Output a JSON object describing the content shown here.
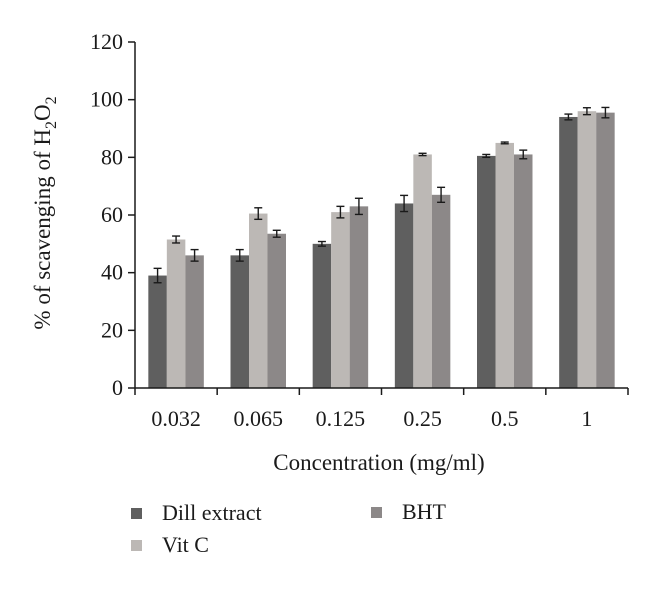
{
  "chart_data": {
    "type": "bar",
    "title": "",
    "xlabel": "Concentration (mg/ml)",
    "ylabel": {
      "main": "% of scavenging of H",
      "sub1": "2",
      "mid": "O",
      "sub2": "2"
    },
    "ylim": [
      0,
      120
    ],
    "yticks": [
      "0",
      "20",
      "40",
      "60",
      "80",
      "100",
      "120"
    ],
    "categories": [
      "0.032",
      "0.065",
      "0.125",
      "0.25",
      "0.5",
      "1"
    ],
    "grid": false,
    "legend_position": "bottom",
    "series": [
      {
        "name": "Dill extract",
        "color": "#5f5f5f",
        "values": [
          39,
          46,
          50,
          64,
          80.5,
          94
        ],
        "errors": [
          2.5,
          2,
          0.8,
          2.8,
          0.5,
          1
        ]
      },
      {
        "name": "Vit C",
        "color": "#bcb8b5",
        "values": [
          51.5,
          60.5,
          61,
          81,
          85,
          96
        ],
        "errors": [
          1.2,
          2,
          2,
          0.4,
          0.3,
          1.2
        ]
      },
      {
        "name": "BHT",
        "color": "#8c8888",
        "values": [
          46,
          53.5,
          63,
          67,
          81,
          95.5
        ],
        "errors": [
          2,
          1.2,
          2.8,
          2.6,
          1.5,
          1.8
        ]
      }
    ]
  }
}
